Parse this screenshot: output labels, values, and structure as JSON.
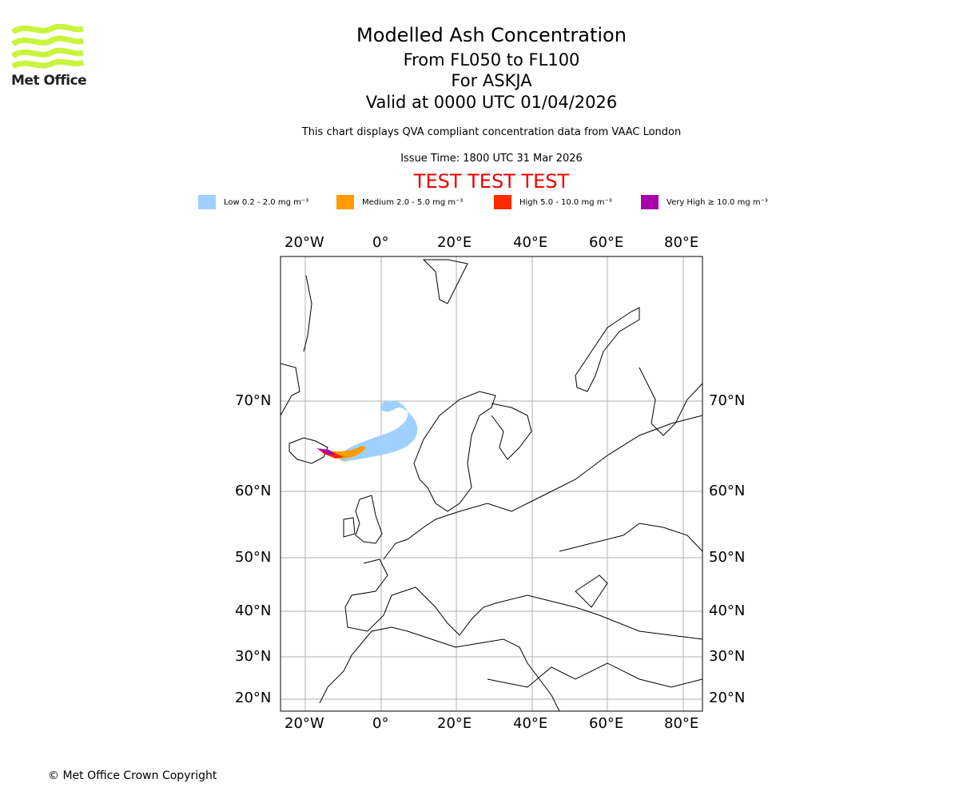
{
  "logo": {
    "text": "Met Office",
    "color": "#c8f53c"
  },
  "header": {
    "title": "Modelled Ash Concentration",
    "levels": "From FL050 to FL100",
    "volcano": "For ASKJA",
    "valid": "Valid at 0000 UTC 01/04/2026",
    "description": "This chart displays QVA compliant concentration data from VAAC London",
    "issue_time": "Issue Time: 1800 UTC 31 Mar 2026",
    "test_banner": "TEST TEST TEST"
  },
  "legend": [
    {
      "label": "Low 0.2 - 2.0 mg m⁻³",
      "color": "#a0d0ff"
    },
    {
      "label": "Medium 2.0 - 5.0 mg m⁻³",
      "color": "#ff9a00"
    },
    {
      "label": "High 5.0 - 10.0 mg m⁻³",
      "color": "#ff2a00"
    },
    {
      "label": "Very High ≥ 10.0 mg m⁻³",
      "color": "#aa00aa"
    }
  ],
  "map": {
    "lon_labels": [
      "20°W",
      "0°",
      "20°E",
      "40°E",
      "60°E",
      "80°E"
    ],
    "lat_labels": [
      "70°N",
      "60°N",
      "50°N",
      "40°N",
      "30°N",
      "20°N"
    ]
  },
  "footer": {
    "copyright": "© Met Office Crown Copyright"
  }
}
